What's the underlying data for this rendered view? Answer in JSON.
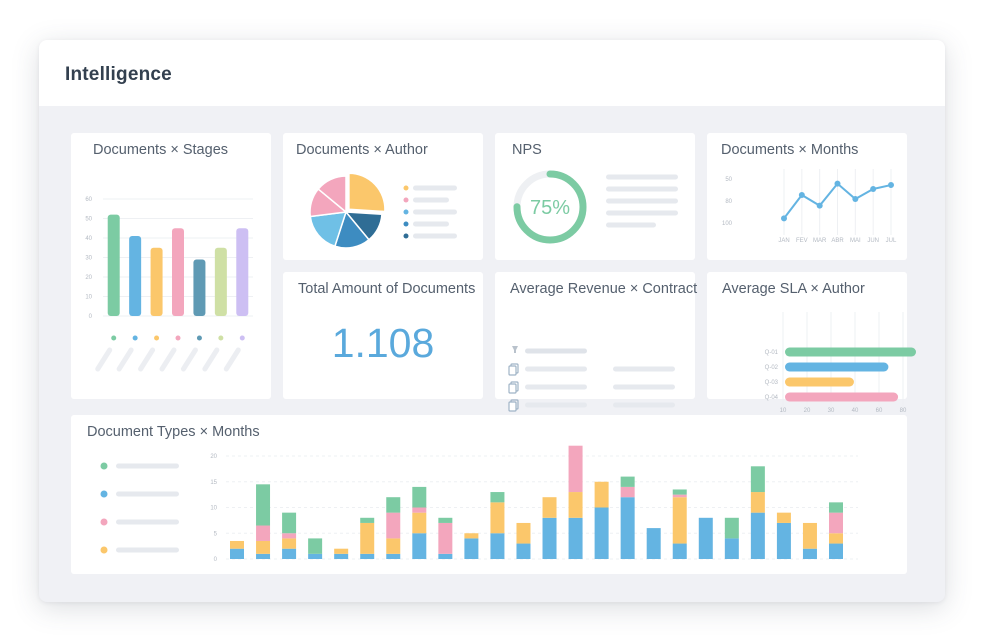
{
  "window": {
    "title": "Intelligence"
  },
  "colors": {
    "green": "#7ccba3",
    "blue": "#64b4e2",
    "orange": "#fbc76b",
    "pink": "#f3a6bd",
    "steel": "#5f9ab4",
    "lime": "#cfe0a5",
    "lavender": "#cdbff3",
    "darkblue": "#2f6d95",
    "midblue": "#3d8cc1",
    "lightblue": "#6fc0e6",
    "placeholder": "#e6e9ee"
  },
  "cards": {
    "stages": {
      "title": "Documents × Stages"
    },
    "author": {
      "title": "Documents × Author"
    },
    "nps": {
      "title": "NPS",
      "value_label": "75%"
    },
    "months": {
      "title": "Documents × Months"
    },
    "total": {
      "title": "Total Amount of Documents",
      "value": "1.108"
    },
    "revenue": {
      "title": "Average Revenue × Contract"
    },
    "sla": {
      "title": "Average SLA × Author"
    },
    "types": {
      "title": "Document Types × Months"
    }
  },
  "chart_data": [
    {
      "id": "stages",
      "type": "bar",
      "title": "Documents × Stages",
      "categories": [
        "",
        "",
        "",
        "",
        "",
        "",
        ""
      ],
      "values": [
        52,
        41,
        35,
        45,
        29,
        35,
        45
      ],
      "colors": [
        "green",
        "blue",
        "orange",
        "pink",
        "steel",
        "lime",
        "lavender"
      ],
      "yticks": [
        "0",
        "10",
        "20",
        "30",
        "40",
        "50",
        "60"
      ],
      "ylim": [
        0,
        60
      ],
      "grid": true,
      "legend": "bottom"
    },
    {
      "id": "author",
      "type": "pie",
      "title": "Documents × Author",
      "values": [
        26,
        13,
        16,
        18,
        13,
        14
      ],
      "colors": [
        "orange",
        "darkblue",
        "midblue",
        "lightblue",
        "pink",
        "pink"
      ],
      "legend_colors": [
        "orange",
        "pink",
        "blue",
        "midblue",
        "darkblue"
      ],
      "legend": "right"
    },
    {
      "id": "nps",
      "type": "pie",
      "title": "NPS",
      "values": [
        75,
        25
      ],
      "label": "75%"
    },
    {
      "id": "months",
      "type": "line",
      "title": "Documents × Months",
      "categories": [
        "JAN",
        "FEV",
        "MAR",
        "ABR",
        "MAI",
        "JUN",
        "JUL"
      ],
      "values": [
        52,
        87,
        71,
        104,
        81,
        96,
        102
      ],
      "yticks": [
        "50",
        "80",
        "100"
      ],
      "ylim": [
        30,
        120
      ],
      "grid": true
    },
    {
      "id": "sla",
      "type": "bar",
      "orientation": "horizontal",
      "title": "Average SLA × Author",
      "categories": [
        "Q-01",
        "Q-02",
        "Q-03",
        "Q-04"
      ],
      "values": [
        95,
        75,
        50,
        82
      ],
      "colors": [
        "green",
        "blue",
        "orange",
        "pink"
      ],
      "xticks": [
        "10",
        "20",
        "30",
        "40",
        "60",
        "80"
      ],
      "xlim": [
        0,
        100
      ],
      "legend": "bottom"
    },
    {
      "id": "types",
      "type": "bar",
      "stacked": true,
      "title": "Document Types × Months",
      "yticks": [
        "0",
        "5",
        "10",
        "15",
        "20"
      ],
      "ylim": [
        0,
        20
      ],
      "series": [
        {
          "color": "blue",
          "values": [
            2,
            1,
            2,
            1,
            1,
            1,
            1,
            5,
            1,
            4,
            5,
            3,
            8,
            8,
            10,
            12,
            6,
            3,
            8,
            4,
            9,
            7,
            2,
            3
          ]
        },
        {
          "color": "orange",
          "values": [
            1.5,
            2.5,
            2,
            0,
            1,
            6,
            3,
            4,
            0,
            1,
            6,
            4,
            4,
            5,
            5,
            0,
            0,
            9,
            0,
            0,
            4,
            2,
            5,
            2
          ]
        },
        {
          "color": "pink",
          "values": [
            0,
            3,
            1,
            0,
            0,
            0,
            5,
            1,
            6,
            0,
            0,
            0,
            0,
            9,
            0,
            2,
            0,
            0.5,
            0,
            0,
            0,
            0,
            0,
            4
          ]
        },
        {
          "color": "green",
          "values": [
            0,
            8,
            4,
            3,
            0,
            1,
            3,
            4,
            1,
            0,
            2,
            0,
            0,
            0,
            0,
            2,
            0,
            1,
            0,
            4,
            5,
            0,
            0,
            2
          ]
        }
      ],
      "legend": "left"
    }
  ]
}
